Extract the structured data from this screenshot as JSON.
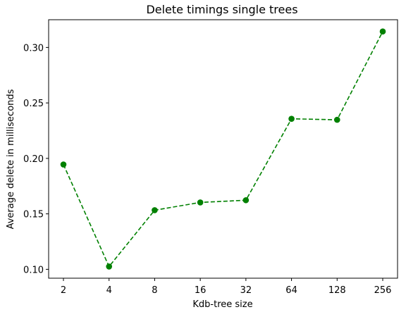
{
  "chart_data": {
    "type": "line",
    "title": "Delete timings single trees",
    "xlabel": "Kdb-tree size",
    "ylabel": "Average delete in milliseconds",
    "categories": [
      "2",
      "4",
      "8",
      "16",
      "32",
      "64",
      "128",
      "256"
    ],
    "series": [
      {
        "values": [
          0.1945,
          0.1025,
          0.1533,
          0.1603,
          0.1623,
          0.2357,
          0.2348,
          0.3144
        ],
        "color": "#008000",
        "line_style": "dashed",
        "marker": "circle"
      }
    ],
    "yticks": [
      "0.10",
      "0.15",
      "0.20",
      "0.25",
      "0.30"
    ],
    "ylim": [
      0.092,
      0.325
    ],
    "grid": false,
    "legend": "none"
  }
}
